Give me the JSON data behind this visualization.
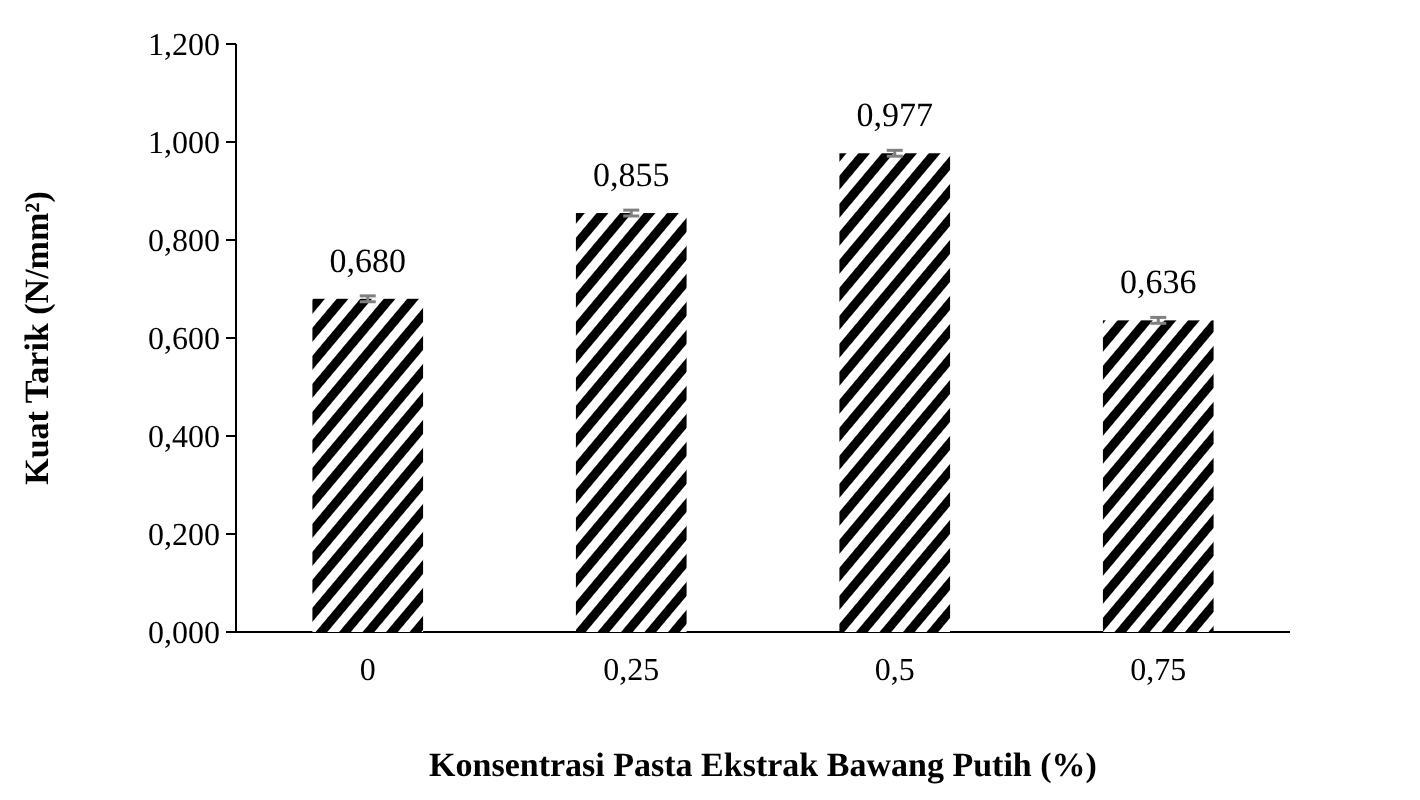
{
  "chart_data": {
    "type": "bar",
    "xlabel": "Konsentrasi Pasta Ekstrak Bawang Putih (%)",
    "ylabel": "Kuat Tarik (N/mm²)",
    "categories": [
      "0",
      "0,25",
      "0,5",
      "0,75"
    ],
    "values": [
      0.68,
      0.855,
      0.977,
      0.636
    ],
    "errors": [
      0.006,
      0.006,
      0.006,
      0.006
    ],
    "value_labels": [
      "0,680",
      "0,855",
      "0,977",
      "0,636"
    ],
    "color": "#000000",
    "ylim": [
      0,
      1.2
    ],
    "yticks": [
      {
        "value": 0,
        "label": "0,000"
      },
      {
        "value": 0.2,
        "label": "0,200"
      },
      {
        "value": 0.4,
        "label": "0,400"
      },
      {
        "value": 0.6,
        "label": "0,600"
      },
      {
        "value": 0.8,
        "label": "0,800"
      },
      {
        "value": 1,
        "label": "1,000"
      },
      {
        "value": 1.2,
        "label": "1,200"
      }
    ]
  }
}
